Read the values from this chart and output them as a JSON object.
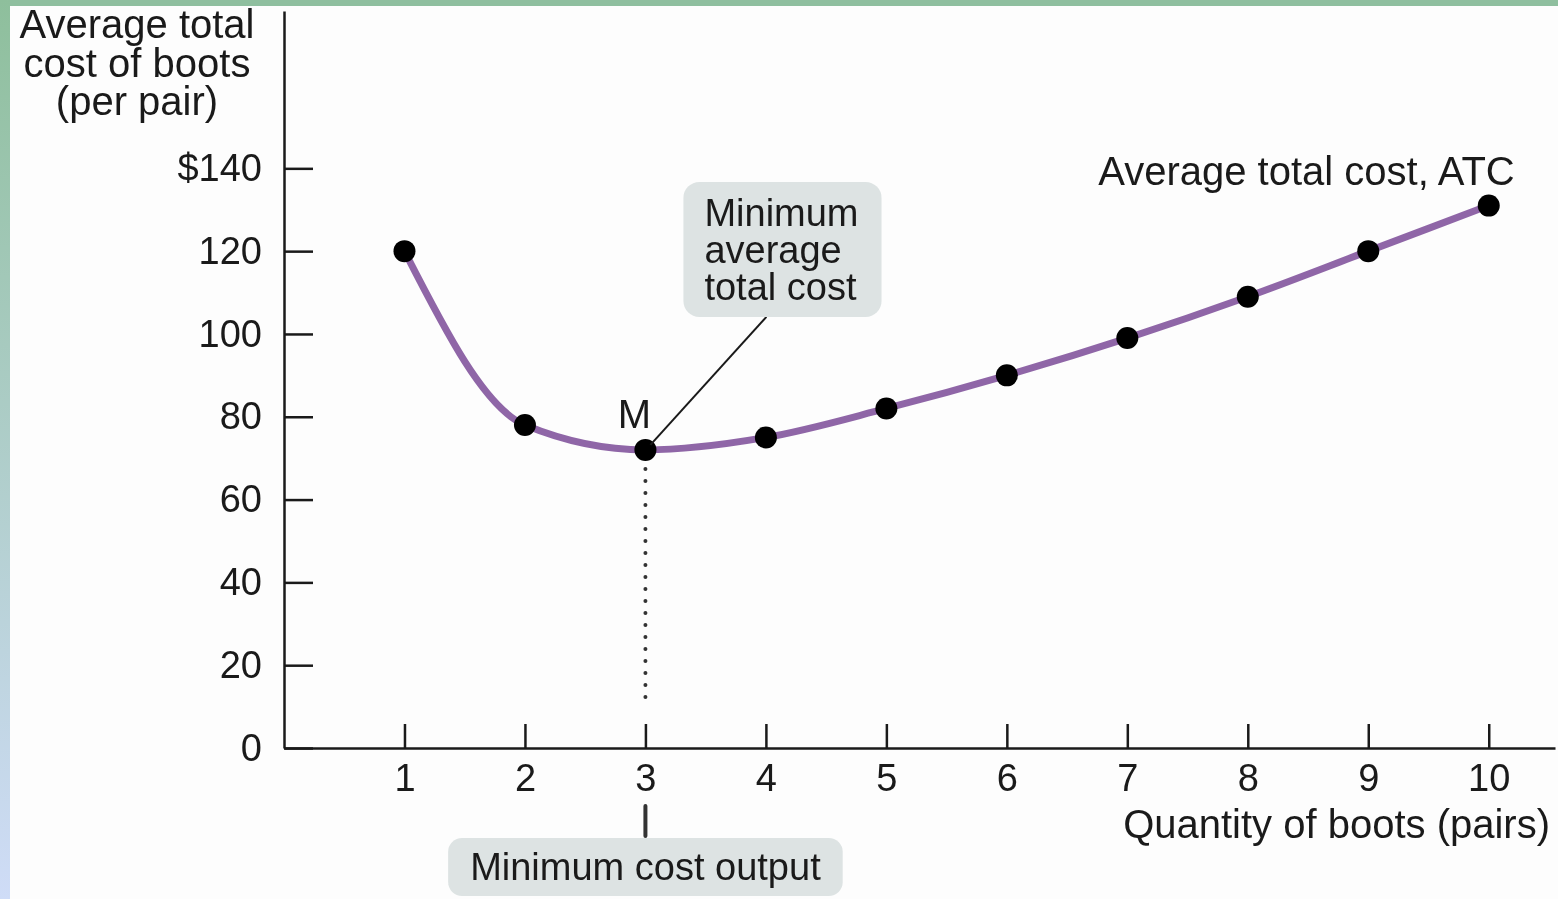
{
  "chart_data": {
    "type": "line",
    "xlabel": "Quantity of boots (pairs)",
    "ylabel": "Average total\ncost of boots\n(per pair)",
    "x": [
      1,
      2,
      3,
      4,
      5,
      6,
      7,
      8,
      9,
      10
    ],
    "series": [
      {
        "name": "Average total cost, ATC",
        "color": "#8f66a7",
        "values": [
          120,
          78,
          72,
          75,
          82,
          90,
          99,
          109,
          120,
          131
        ]
      }
    ],
    "xlim": [
      0,
      10.55
    ],
    "ylim": [
      0,
      178
    ],
    "xticks": [
      1,
      2,
      3,
      4,
      5,
      6,
      7,
      8,
      9,
      10
    ],
    "yticks": [
      0,
      20,
      40,
      60,
      80,
      100,
      120,
      {
        "value": 140,
        "label": "$140"
      }
    ],
    "marker": "circle",
    "line_style": "solid",
    "ref_lines": [
      {
        "axis": "x",
        "value": 3,
        "label": "Minimum cost output",
        "line_style": "dotted",
        "color": "#333333"
      }
    ],
    "annotations": [
      {
        "text": "M",
        "x": 3,
        "y": 72
      },
      {
        "text": "Minimum\naverage\ntotal cost",
        "x": 3,
        "y": 72
      }
    ]
  }
}
